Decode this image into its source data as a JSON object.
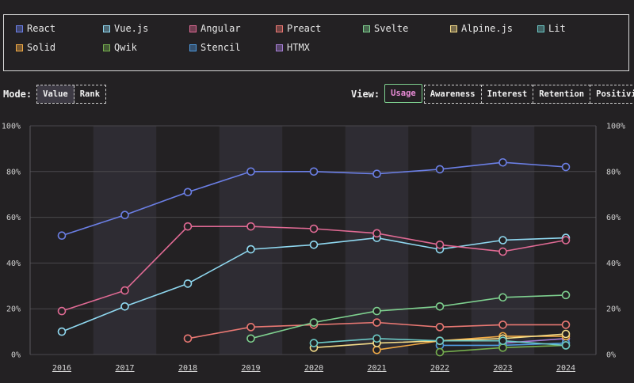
{
  "legend": [
    {
      "name": "React",
      "color": "#6b7fe5"
    },
    {
      "name": "Vue.js",
      "color": "#8fd8f0"
    },
    {
      "name": "Angular",
      "color": "#e06a94"
    },
    {
      "name": "Preact",
      "color": "#e97873"
    },
    {
      "name": "Svelte",
      "color": "#7ed08f"
    },
    {
      "name": "Alpine.js",
      "color": "#f5dd8a"
    },
    {
      "name": "Lit",
      "color": "#6cc9c6"
    },
    {
      "name": "Solid",
      "color": "#f0a945"
    },
    {
      "name": "Qwik",
      "color": "#76b04f"
    },
    {
      "name": "Stencil",
      "color": "#4f9be0"
    },
    {
      "name": "HTMX",
      "color": "#a77fd6"
    }
  ],
  "mode": {
    "label": "Mode:",
    "options": [
      "Value",
      "Rank"
    ],
    "active": "Value"
  },
  "view": {
    "label": "View:",
    "options": [
      "Usage",
      "Awareness",
      "Interest",
      "Retention",
      "Positivity"
    ],
    "active": "Usage"
  },
  "chart_data": {
    "type": "line",
    "x": [
      2016,
      2017,
      2018,
      2019,
      2020,
      2021,
      2022,
      2023,
      2024
    ],
    "ylim": [
      0,
      100
    ],
    "yticks": [
      "0%",
      "20%",
      "40%",
      "60%",
      "80%",
      "100%"
    ],
    "grid": true,
    "series": [
      {
        "name": "React",
        "color": "#6b7fe5",
        "values": [
          52,
          61,
          71,
          80,
          80,
          79,
          81,
          84,
          82
        ]
      },
      {
        "name": "Angular",
        "color": "#e06a94",
        "values": [
          19,
          28,
          56,
          56,
          55,
          53,
          48,
          45,
          50
        ]
      },
      {
        "name": "Vue.js",
        "color": "#8fd8f0",
        "values": [
          10,
          21,
          31,
          46,
          48,
          51,
          46,
          50,
          51
        ]
      },
      {
        "name": "Svelte",
        "color": "#7ed08f",
        "values": [
          null,
          null,
          null,
          7,
          14,
          19,
          21,
          25,
          26
        ]
      },
      {
        "name": "Preact",
        "color": "#e97873",
        "values": [
          null,
          null,
          7,
          12,
          13,
          14,
          12,
          13,
          13
        ]
      },
      {
        "name": "Lit",
        "color": "#6cc9c6",
        "values": [
          null,
          null,
          null,
          null,
          5,
          7,
          6,
          6,
          4
        ]
      },
      {
        "name": "Alpine.js",
        "color": "#f5dd8a",
        "values": [
          null,
          null,
          null,
          null,
          3,
          5,
          6,
          7,
          9
        ]
      },
      {
        "name": "Solid",
        "color": "#f0a945",
        "values": [
          null,
          null,
          null,
          null,
          null,
          2,
          6,
          8,
          8
        ]
      },
      {
        "name": "Qwik",
        "color": "#76b04f",
        "values": [
          null,
          null,
          null,
          null,
          null,
          null,
          1,
          3,
          4
        ]
      },
      {
        "name": "Stencil",
        "color": "#4f9be0",
        "values": [
          null,
          null,
          null,
          null,
          null,
          null,
          4,
          4,
          5
        ]
      },
      {
        "name": "HTMX",
        "color": "#a77fd6",
        "values": [
          null,
          null,
          null,
          null,
          null,
          null,
          null,
          5,
          7
        ]
      }
    ]
  }
}
